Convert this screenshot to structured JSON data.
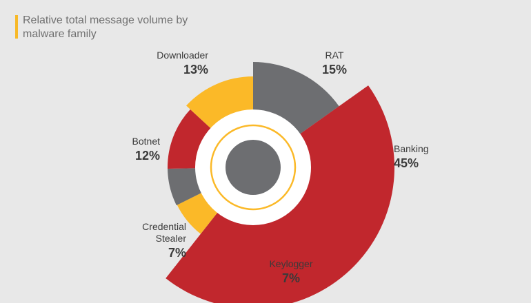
{
  "chart_data": {
    "type": "pie",
    "title": "Relative total message volume by malware family",
    "categories": [
      "RAT",
      "Banking",
      "Keylogger",
      "Credential Stealer",
      "Botnet",
      "Downloader"
    ],
    "name_lines": [
      [
        "RAT"
      ],
      [
        "Banking"
      ],
      [
        "Keylogger"
      ],
      [
        "Credential",
        "Stealer"
      ],
      [
        "Botnet"
      ],
      [
        "Downloader"
      ]
    ],
    "values": [
      15,
      45,
      7,
      7,
      12,
      13
    ],
    "value_labels": [
      "15%",
      "45%",
      "7%",
      "7%",
      "12%",
      "13%"
    ],
    "unit": "%",
    "colors": [
      "#6d6e71",
      "#c1272d",
      "#fbb928",
      "#6d6e71",
      "#c1272d",
      "#fbb928"
    ],
    "center_color": "#6d6e71",
    "ring_color": "#fbb928"
  }
}
